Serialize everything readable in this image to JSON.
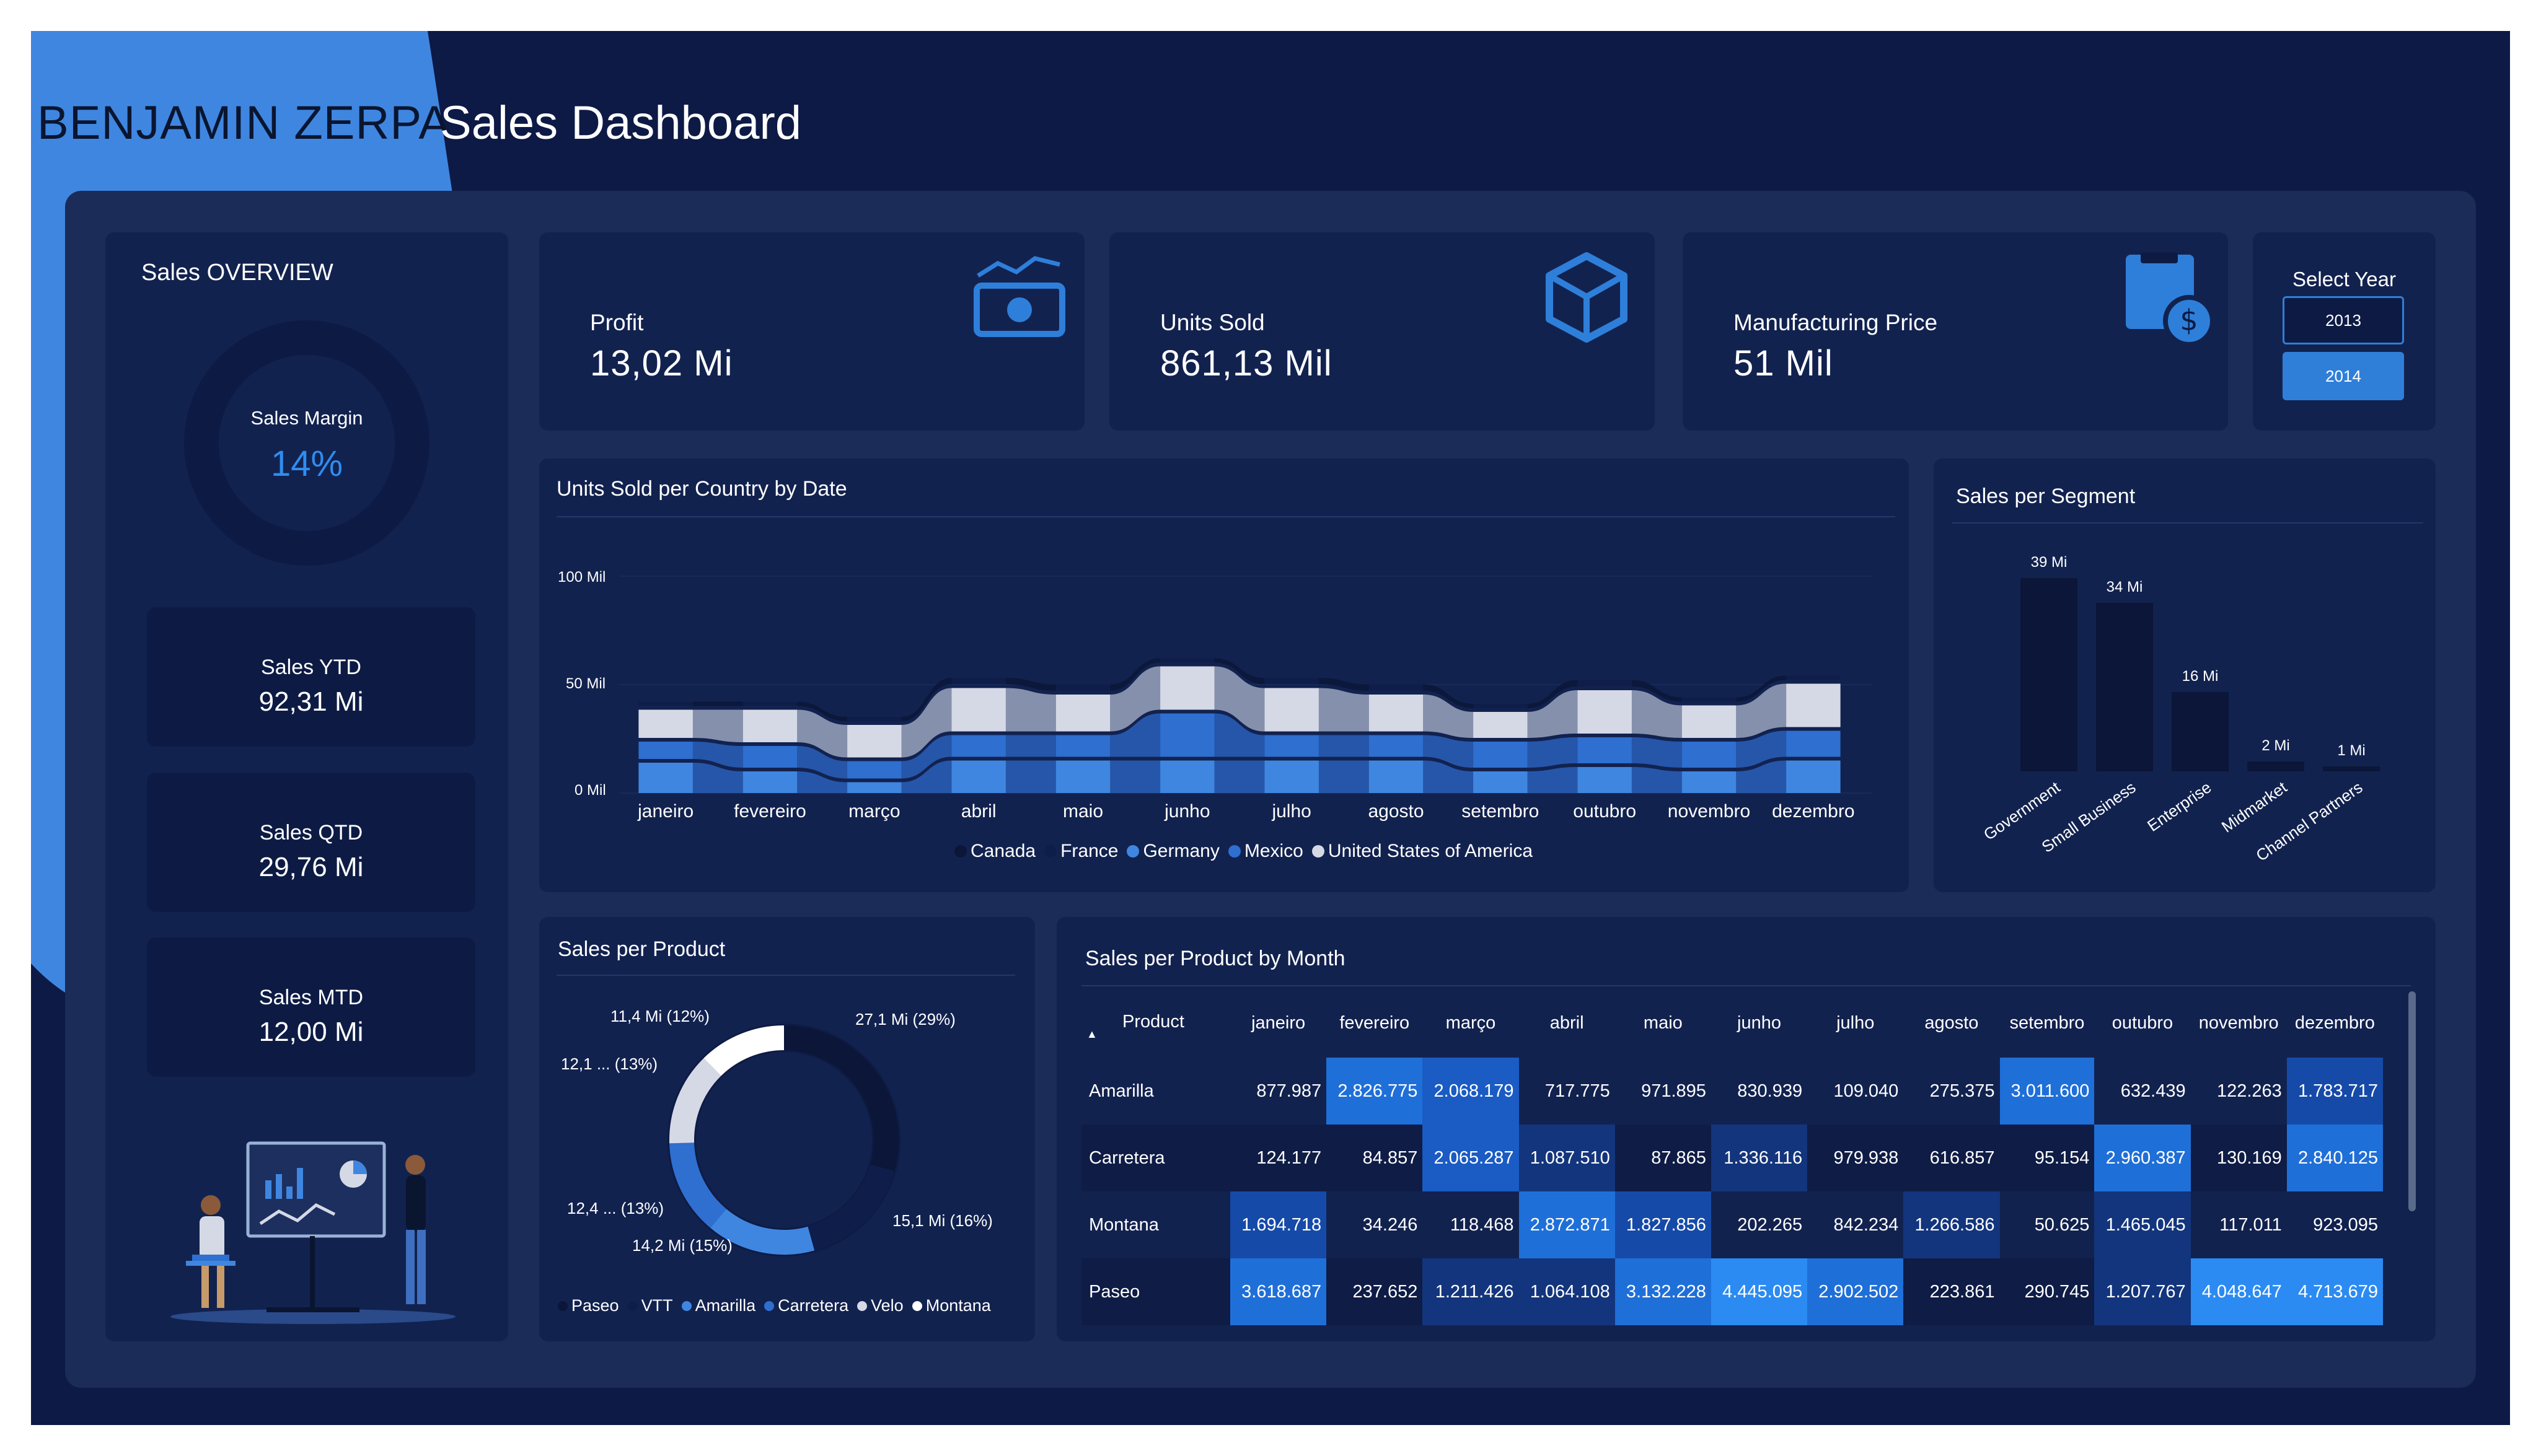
{
  "header": {
    "brand": "BENJAMIN ZERPA",
    "title": "Sales Dashboard"
  },
  "overview": {
    "title": "Sales OVERVIEW",
    "margin_label": "Sales Margin",
    "margin_value": "14%",
    "margin_fraction": 0.14,
    "cards": [
      {
        "label": "Sales YTD",
        "value": "92,31 Mi"
      },
      {
        "label": "Sales QTD",
        "value": "29,76 Mi"
      },
      {
        "label": "Sales MTD",
        "value": "12,00 Mi"
      }
    ]
  },
  "kpis": [
    {
      "label": "Profit",
      "value": "13,02 Mi",
      "icon": "money-chart-icon"
    },
    {
      "label": "Units Sold",
      "value": "861,13 Mil",
      "icon": "box-icon"
    },
    {
      "label": "Manufacturing Price",
      "value": "51 Mil",
      "icon": "price-tag-icon"
    }
  ],
  "year_filter": {
    "title": "Select Year",
    "options": [
      "2013",
      "2014"
    ],
    "selected": "2014"
  },
  "colors": {
    "background": "#0d1a45",
    "panel": "#1a2c57",
    "card": "#12224f",
    "accent": "#2f7fd9",
    "canada": "#0b1638",
    "france": "#0f1d4a",
    "germany": "#3f86e0",
    "mexico": "#2e6fd0",
    "usa": "#d5d9e6"
  },
  "ribbon": {
    "title": "Units Sold per Country by Date",
    "y_ticks": [
      "100 Mil",
      "50 Mil",
      "0 Mil"
    ],
    "months": [
      "janeiro",
      "fevereiro",
      "março",
      "abril",
      "maio",
      "junho",
      "julho",
      "agosto",
      "setembro",
      "outubro",
      "novembro",
      "dezembro"
    ],
    "legend": [
      "Canada",
      "France",
      "Germany",
      "Mexico",
      "United States of America"
    ]
  },
  "segment": {
    "title": "Sales per Segment",
    "value_labels": [
      "39 Mi",
      "34 Mi",
      "16 Mi",
      "2 Mi",
      "1 Mi"
    ]
  },
  "product": {
    "title": "Sales per Product",
    "slice_labels": [
      "27,1 Mi (29%)",
      "15,1 Mi (16%)",
      "14,2 Mi (15%)",
      "12,4 ... (13%)",
      "12,1 ... (13%)",
      "11,4 Mi (12%)"
    ],
    "legend": [
      "Paseo",
      "VTT",
      "Amarilla",
      "Carretera",
      "Velo",
      "Montana"
    ]
  },
  "matrix": {
    "title": "Sales per Product by Month",
    "header_product": "Product",
    "sort_glyph": "▲",
    "months": [
      "janeiro",
      "fevereiro",
      "março",
      "abril",
      "maio",
      "junho",
      "julho",
      "agosto",
      "setembro",
      "outubro",
      "novembro",
      "dezembro"
    ],
    "rows": [
      {
        "product": "Amarilla",
        "values": [
          "877.987",
          "2.826.775",
          "2.068.179",
          "717.775",
          "971.895",
          "830.939",
          "109.040",
          "275.375",
          "3.011.600",
          "632.439",
          "122.263",
          "1.783.717"
        ]
      },
      {
        "product": "Carretera",
        "values": [
          "124.177",
          "84.857",
          "2.065.287",
          "1.087.510",
          "87.865",
          "1.336.116",
          "979.938",
          "616.857",
          "95.154",
          "2.960.387",
          "130.169",
          "2.840.125"
        ]
      },
      {
        "product": "Montana",
        "values": [
          "1.694.718",
          "34.246",
          "118.468",
          "2.872.871",
          "1.827.856",
          "202.265",
          "842.234",
          "1.266.586",
          "50.625",
          "1.465.045",
          "117.011",
          "923.095"
        ]
      },
      {
        "product": "Paseo",
        "values": [
          "3.618.687",
          "237.652",
          "1.211.426",
          "1.064.108",
          "3.132.228",
          "4.445.095",
          "2.902.502",
          "223.861",
          "290.745",
          "1.207.767",
          "4.048.647",
          "4.713.679"
        ]
      }
    ]
  },
  "chart_data": [
    {
      "type": "area",
      "title": "Units Sold per Country by Date",
      "x": [
        "janeiro",
        "fevereiro",
        "março",
        "abril",
        "maio",
        "junho",
        "julho",
        "agosto",
        "setembro",
        "outubro",
        "novembro",
        "dezembro"
      ],
      "ylim": [
        0,
        100
      ],
      "series": [
        {
          "name": "Canada",
          "values": [
            0,
            0,
            0,
            0,
            0,
            0,
            0,
            0,
            0,
            0,
            0,
            0
          ]
        },
        {
          "name": "France",
          "values": [
            2,
            2,
            2,
            3,
            3,
            2,
            3,
            3,
            2,
            3,
            2,
            2
          ]
        },
        {
          "name": "Germany",
          "values": [
            14,
            10,
            5,
            15,
            15,
            15,
            15,
            15,
            10,
            12,
            10,
            15
          ]
        },
        {
          "name": "Mexico",
          "values": [
            8,
            10,
            8,
            10,
            10,
            20,
            10,
            10,
            12,
            12,
            12,
            12
          ]
        },
        {
          "name": "United States of America",
          "values": [
            13,
            15,
            15,
            20,
            17,
            20,
            20,
            17,
            12,
            20,
            15,
            20
          ]
        }
      ]
    },
    {
      "type": "bar",
      "title": "Sales per Segment",
      "categories": [
        "Government",
        "Small Business",
        "Enterprise",
        "Midmarket",
        "Channel Partners"
      ],
      "values": [
        39,
        34,
        16,
        2,
        1
      ],
      "ylim": [
        0,
        40
      ]
    },
    {
      "type": "pie",
      "title": "Sales per Product",
      "categories": [
        "Paseo",
        "VTT",
        "Amarilla",
        "Carretera",
        "Velo",
        "Montana"
      ],
      "values": [
        27.1,
        15.1,
        14.2,
        12.4,
        12.1,
        11.4
      ]
    }
  ]
}
